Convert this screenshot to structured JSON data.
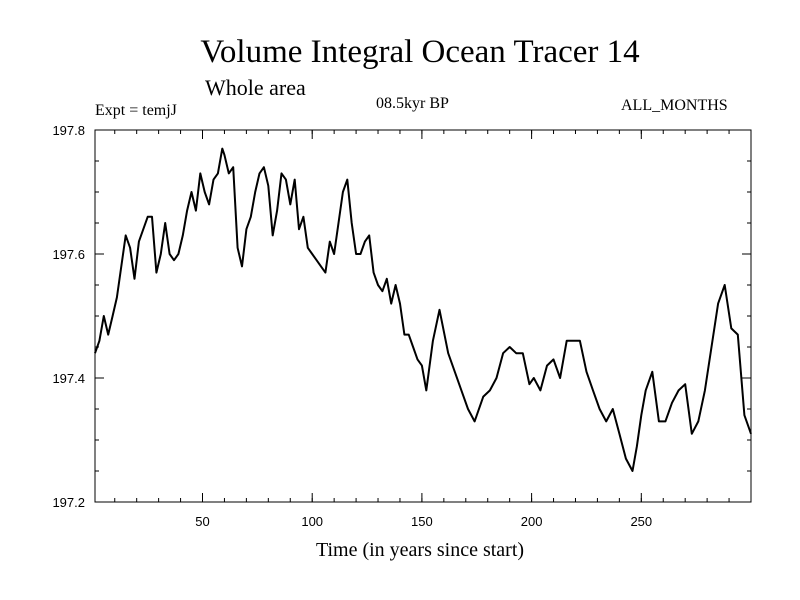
{
  "chart_data": {
    "type": "line",
    "title": "Volume Integral Ocean Tracer 14",
    "subtitle": "Whole area",
    "expt_label": "Expt = temjJ",
    "period_label": "08.5kyr BP",
    "months_label": "ALL_MONTHS",
    "xlabel": "Time (in years since start)",
    "ylabel": "",
    "xlim": [
      1,
      300
    ],
    "ylim": [
      197.2,
      197.8
    ],
    "x_ticks": [
      50,
      100,
      150,
      200,
      250
    ],
    "y_ticks": [
      "197.2",
      "197.4",
      "197.6",
      "197.8"
    ],
    "grid": false,
    "series": [
      {
        "name": "Volume Integral Ocean Tracer 14",
        "color": "#000000",
        "x": [
          1,
          3,
          5,
          7,
          9,
          11,
          13,
          15,
          17,
          19,
          21,
          23,
          25,
          27,
          29,
          31,
          33,
          35,
          37,
          39,
          41,
          43,
          45,
          47,
          49,
          51,
          53,
          55,
          57,
          59,
          60,
          62,
          64,
          66,
          68,
          70,
          72,
          74,
          76,
          78,
          80,
          82,
          84,
          86,
          88,
          90,
          92,
          94,
          96,
          98,
          100,
          102,
          104,
          106,
          108,
          110,
          112,
          114,
          116,
          118,
          120,
          122,
          124,
          126,
          128,
          130,
          132,
          134,
          136,
          138,
          140,
          142,
          144,
          146,
          148,
          150,
          152,
          155,
          158,
          162,
          165,
          168,
          171,
          174,
          178,
          181,
          184,
          187,
          190,
          193,
          196,
          199,
          201,
          204,
          207,
          210,
          213,
          216,
          219,
          222,
          225,
          228,
          231,
          234,
          237,
          240,
          243,
          246,
          248,
          250,
          252,
          255,
          258,
          261,
          264,
          267,
          270,
          273,
          276,
          279,
          282,
          285,
          288,
          291,
          294,
          297,
          300
        ],
        "values": [
          197.44,
          197.46,
          197.5,
          197.47,
          197.5,
          197.53,
          197.58,
          197.63,
          197.61,
          197.56,
          197.62,
          197.64,
          197.66,
          197.66,
          197.57,
          197.6,
          197.65,
          197.6,
          197.59,
          197.6,
          197.63,
          197.67,
          197.7,
          197.67,
          197.73,
          197.7,
          197.68,
          197.72,
          197.73,
          197.77,
          197.76,
          197.73,
          197.74,
          197.61,
          197.58,
          197.64,
          197.66,
          197.7,
          197.73,
          197.74,
          197.71,
          197.63,
          197.67,
          197.73,
          197.72,
          197.68,
          197.72,
          197.64,
          197.66,
          197.61,
          197.6,
          197.59,
          197.58,
          197.57,
          197.62,
          197.6,
          197.65,
          197.7,
          197.72,
          197.65,
          197.6,
          197.6,
          197.62,
          197.63,
          197.57,
          197.55,
          197.54,
          197.56,
          197.52,
          197.55,
          197.52,
          197.47,
          197.47,
          197.45,
          197.43,
          197.42,
          197.38,
          197.46,
          197.51,
          197.44,
          197.41,
          197.38,
          197.35,
          197.33,
          197.37,
          197.38,
          197.4,
          197.44,
          197.45,
          197.44,
          197.44,
          197.39,
          197.4,
          197.38,
          197.42,
          197.43,
          197.4,
          197.46,
          197.46,
          197.46,
          197.41,
          197.38,
          197.35,
          197.33,
          197.35,
          197.31,
          197.27,
          197.25,
          197.29,
          197.34,
          197.38,
          197.41,
          197.33,
          197.33,
          197.36,
          197.38,
          197.39,
          197.31,
          197.33,
          197.38,
          197.45,
          197.52,
          197.55,
          197.48,
          197.47,
          197.34,
          197.31
        ]
      }
    ]
  }
}
